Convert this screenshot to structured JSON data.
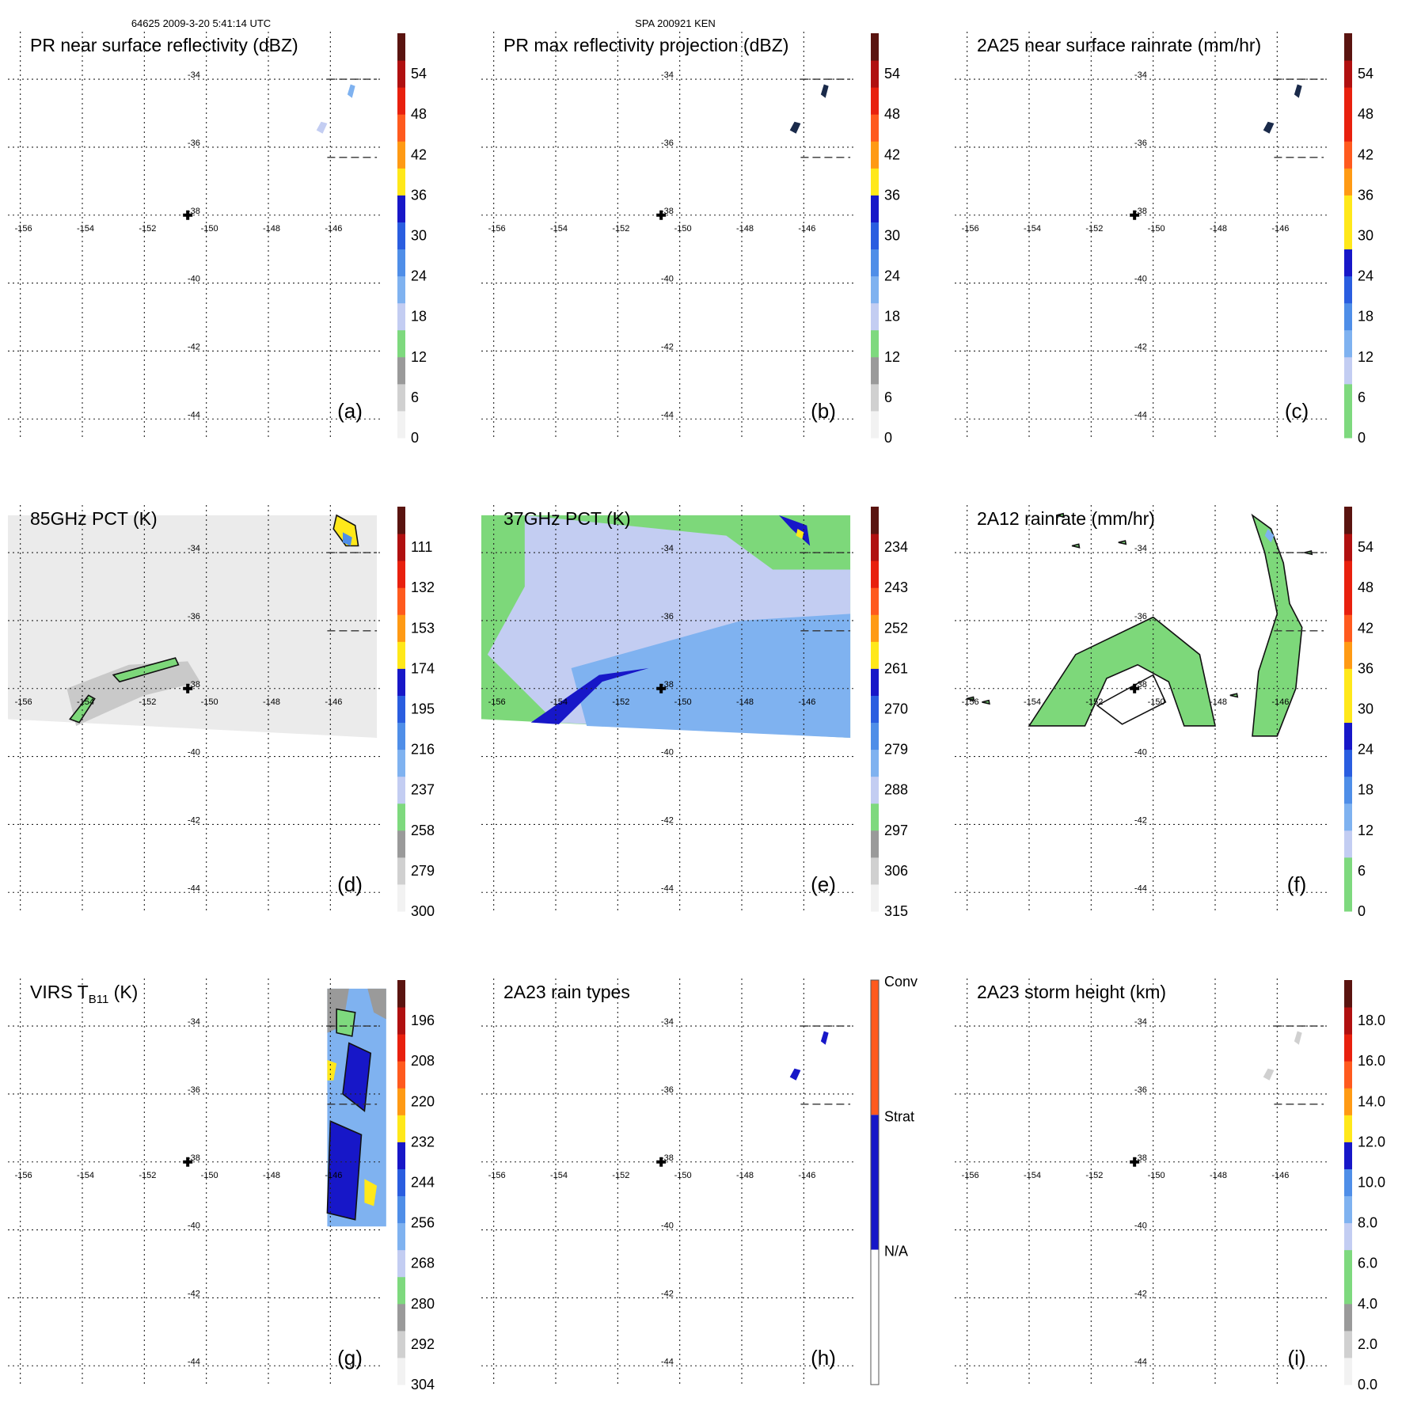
{
  "header": {
    "left": "64625 2009-3-20 5:41:14 UTC",
    "center": "SPA 200921 KEN"
  },
  "colors": {
    "gray_light": "#f2f2f2",
    "gray_mid": "#d0d0d0",
    "gray_dark": "#9a9a9a",
    "green": "#7ed97e",
    "lightblue": "#c3cdf2",
    "blue1": "#7fb2f0",
    "blue2": "#4f8ee8",
    "blue3": "#2a5de0",
    "navy": "#1717c8",
    "yellow": "#ffe81a",
    "orange": "#ff9a14",
    "redorange": "#ff5a1e",
    "red": "#e8200e",
    "darkred": "#b01010",
    "maroon": "#5a1410",
    "precip_green": "#7dd87a",
    "precip_blue": "#6fa6ee"
  },
  "chart_data": [
    {
      "type": "heatmap",
      "panel": "(a)",
      "title": "PR near surface reflectivity (dBZ)",
      "colorbar_ticks": [
        "0",
        "6",
        "12",
        "18",
        "24",
        "30",
        "36",
        "42",
        "48",
        "54"
      ],
      "colorbar_range": [
        0,
        60
      ],
      "scheme": "dbz",
      "lon_ticks": [
        "-156",
        "-154",
        "-152",
        "-150",
        "-148",
        "-146"
      ],
      "lat_ticks": [
        "-34",
        "-36",
        "-38",
        "-40",
        "-42",
        "-44"
      ],
      "lon_range": [
        -156.4,
        -144.4
      ],
      "lat_range": [
        -44.6,
        -32.6
      ],
      "marker": [
        -150.6,
        -38.0
      ],
      "field": "pr_ns"
    },
    {
      "type": "heatmap",
      "panel": "(b)",
      "title": "PR max reflectivity projection (dBZ)",
      "colorbar_ticks": [
        "0",
        "6",
        "12",
        "18",
        "24",
        "30",
        "36",
        "42",
        "48",
        "54"
      ],
      "colorbar_range": [
        0,
        60
      ],
      "scheme": "dbz",
      "lon_ticks": [
        "-156",
        "-154",
        "-152",
        "-150",
        "-148",
        "-146"
      ],
      "lat_ticks": [
        "-34",
        "-36",
        "-38",
        "-40",
        "-42",
        "-44"
      ],
      "lon_range": [
        -156.4,
        -144.4
      ],
      "lat_range": [
        -44.6,
        -32.6
      ],
      "marker": [
        -150.6,
        -38.0
      ],
      "field": "pr_max"
    },
    {
      "type": "heatmap",
      "panel": "(c)",
      "title": "2A25 near surface rainrate (mm/hr)",
      "colorbar_ticks": [
        "0",
        "6",
        "12",
        "18",
        "24",
        "30",
        "36",
        "42",
        "48",
        "54"
      ],
      "colorbar_range": [
        0,
        60
      ],
      "scheme": "rain",
      "lon_ticks": [
        "-156",
        "-154",
        "-152",
        "-150",
        "-148",
        "-146"
      ],
      "lat_ticks": [
        "-34",
        "-36",
        "-38",
        "-40",
        "-42",
        "-44"
      ],
      "lon_range": [
        -156.4,
        -144.4
      ],
      "lat_range": [
        -44.6,
        -32.6
      ],
      "marker": [
        -150.6,
        -38.0
      ],
      "field": "pr_rain"
    },
    {
      "type": "heatmap",
      "panel": "(d)",
      "title": "85GHz PCT (K)",
      "colorbar_ticks": [
        "300",
        "279",
        "258",
        "237",
        "216",
        "195",
        "174",
        "153",
        "132",
        "111"
      ],
      "colorbar_range": [
        300,
        90
      ],
      "scheme": "dbz",
      "lon_ticks": [
        "-156",
        "-154",
        "-152",
        "-150",
        "-148",
        "-146"
      ],
      "lat_ticks": [
        "-34",
        "-36",
        "-38",
        "-40",
        "-42",
        "-44"
      ],
      "lon_range": [
        -156.4,
        -144.4
      ],
      "lat_range": [
        -44.6,
        -32.6
      ],
      "marker": [
        -150.6,
        -38.0
      ],
      "field": "pct85"
    },
    {
      "type": "heatmap",
      "panel": "(e)",
      "title": "37GHz PCT (K)",
      "colorbar_ticks": [
        "315",
        "306",
        "297",
        "288",
        "279",
        "270",
        "261",
        "252",
        "243",
        "234"
      ],
      "colorbar_range": [
        315,
        225
      ],
      "scheme": "dbz",
      "lon_ticks": [
        "-156",
        "-154",
        "-152",
        "-150",
        "-148",
        "-146"
      ],
      "lat_ticks": [
        "-34",
        "-36",
        "-38",
        "-40",
        "-42",
        "-44"
      ],
      "lon_range": [
        -156.4,
        -144.4
      ],
      "lat_range": [
        -44.6,
        -32.6
      ],
      "marker": [
        -150.6,
        -38.0
      ],
      "field": "pct37"
    },
    {
      "type": "heatmap",
      "panel": "(f)",
      "title": "2A12 rainrate (mm/hr)",
      "colorbar_ticks": [
        "0",
        "6",
        "12",
        "18",
        "24",
        "30",
        "36",
        "42",
        "48",
        "54"
      ],
      "colorbar_range": [
        0,
        60
      ],
      "scheme": "rain",
      "lon_ticks": [
        "-156",
        "-154",
        "-152",
        "-150",
        "-148",
        "-146"
      ],
      "lat_ticks": [
        "-34",
        "-36",
        "-38",
        "-40",
        "-42",
        "-44"
      ],
      "lon_range": [
        -156.4,
        -144.4
      ],
      "lat_range": [
        -44.6,
        -32.6
      ],
      "marker": [
        -150.6,
        -38.0
      ],
      "field": "tmi_rain"
    },
    {
      "type": "heatmap",
      "panel": "(g)",
      "title": "VIRS T",
      "title_sub": "B11",
      "title_suffix": " (K)",
      "colorbar_ticks": [
        "304",
        "292",
        "280",
        "268",
        "256",
        "244",
        "232",
        "220",
        "208",
        "196"
      ],
      "colorbar_range": [
        304,
        184
      ],
      "scheme": "dbz",
      "lon_ticks": [
        "-156",
        "-154",
        "-152",
        "-150",
        "-148",
        "-146"
      ],
      "lat_ticks": [
        "-34",
        "-36",
        "-38",
        "-40",
        "-42",
        "-44"
      ],
      "lon_range": [
        -156.4,
        -144.4
      ],
      "lat_range": [
        -44.6,
        -32.6
      ],
      "marker": [
        -150.6,
        -38.0
      ],
      "field": "virs"
    },
    {
      "type": "heatmap",
      "panel": "(h)",
      "title": "2A23 rain types",
      "colorbar_ticks": [
        "N/A",
        "Strat",
        "Conv"
      ],
      "scheme": "types",
      "lon_ticks": [
        "-156",
        "-154",
        "-152",
        "-150",
        "-148",
        "-146"
      ],
      "lat_ticks": [
        "-34",
        "-36",
        "-38",
        "-40",
        "-42",
        "-44"
      ],
      "lon_range": [
        -156.4,
        -144.4
      ],
      "lat_range": [
        -44.6,
        -32.6
      ],
      "marker": [
        -150.6,
        -38.0
      ],
      "field": "types"
    },
    {
      "type": "heatmap",
      "panel": "(i)",
      "title": "2A23 storm height (km)",
      "colorbar_ticks": [
        "0.0",
        "2.0",
        "4.0",
        "6.0",
        "8.0",
        "10.0",
        "12.0",
        "14.0",
        "16.0",
        "18.0"
      ],
      "colorbar_range": [
        0,
        20
      ],
      "scheme": "height",
      "lon_ticks": [
        "-156",
        "-154",
        "-152",
        "-150",
        "-148",
        "-146"
      ],
      "lat_ticks": [
        "-34",
        "-36",
        "-38",
        "-40",
        "-42",
        "-44"
      ],
      "lon_range": [
        -156.4,
        -144.4
      ],
      "lat_range": [
        -44.6,
        -32.6
      ],
      "marker": [
        -150.6,
        -38.0
      ],
      "field": "height"
    }
  ]
}
